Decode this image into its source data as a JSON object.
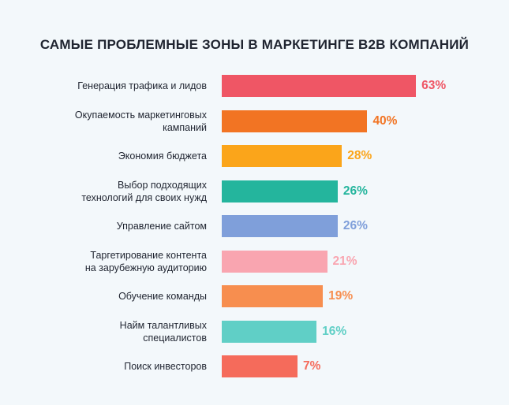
{
  "chart_data": {
    "type": "bar",
    "orientation": "horizontal",
    "title": "САМЫЕ ПРОБЛЕМНЫЕ ЗОНЫ В МАРКЕТИНГЕ B2B КОМПАНИЙ",
    "categories": [
      "Генерация трафика и лидов",
      "Окупаемость маркетинговых\nкампаний",
      "Экономия бюджета",
      "Выбор подходящих\nтехнологий для своих нужд",
      "Управление сайтом",
      "Таргетирование контента\nна зарубежную аудиторию",
      "Обучение команды",
      "Найм талантливых\nспециалистов",
      "Поиск инвесторов"
    ],
    "values": [
      63,
      40,
      28,
      26,
      26,
      21,
      19,
      16,
      7
    ],
    "value_labels": [
      "63%",
      "40%",
      "28%",
      "26%",
      "26%",
      "21%",
      "19%",
      "16%",
      "7%"
    ],
    "colors": [
      "#ef5665",
      "#f27423",
      "#fba51a",
      "#24b59d",
      "#7f9fda",
      "#f9a5b0",
      "#f78e4f",
      "#60cfc6",
      "#f56b5b"
    ],
    "grid": false,
    "legend": "none"
  }
}
